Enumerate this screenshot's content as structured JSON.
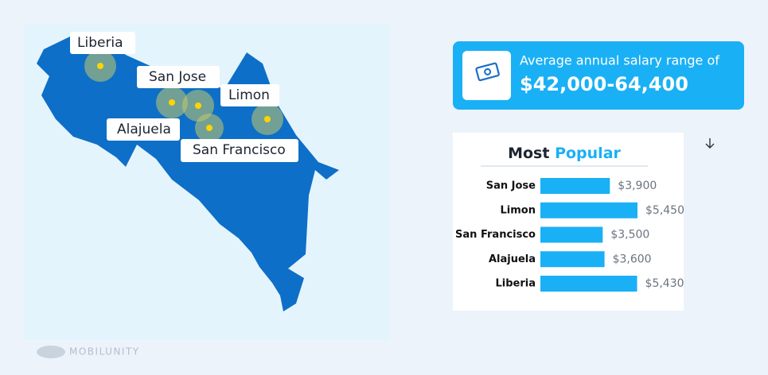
{
  "map": {
    "labels": [
      "Liberia",
      "San Jose",
      "Limon",
      "Alajuela",
      "San Francisco"
    ]
  },
  "salary_card": {
    "caption": "Average annual salary range of",
    "range": "$42,000-64,400"
  },
  "chart_data": {
    "type": "bar",
    "orientation": "horizontal",
    "title": [
      "Most",
      "Popular"
    ],
    "categories": [
      "San Jose",
      "Limon",
      "San Francisco",
      "Alajuela",
      "Liberia"
    ],
    "values": [
      3900,
      5450,
      3500,
      3600,
      5430
    ],
    "value_labels": [
      "$3,900",
      "$5,450",
      "$3,500",
      "$3,600",
      "$5,430"
    ],
    "color": "#1ab0f5"
  },
  "watermark": "MOBILUNITY"
}
